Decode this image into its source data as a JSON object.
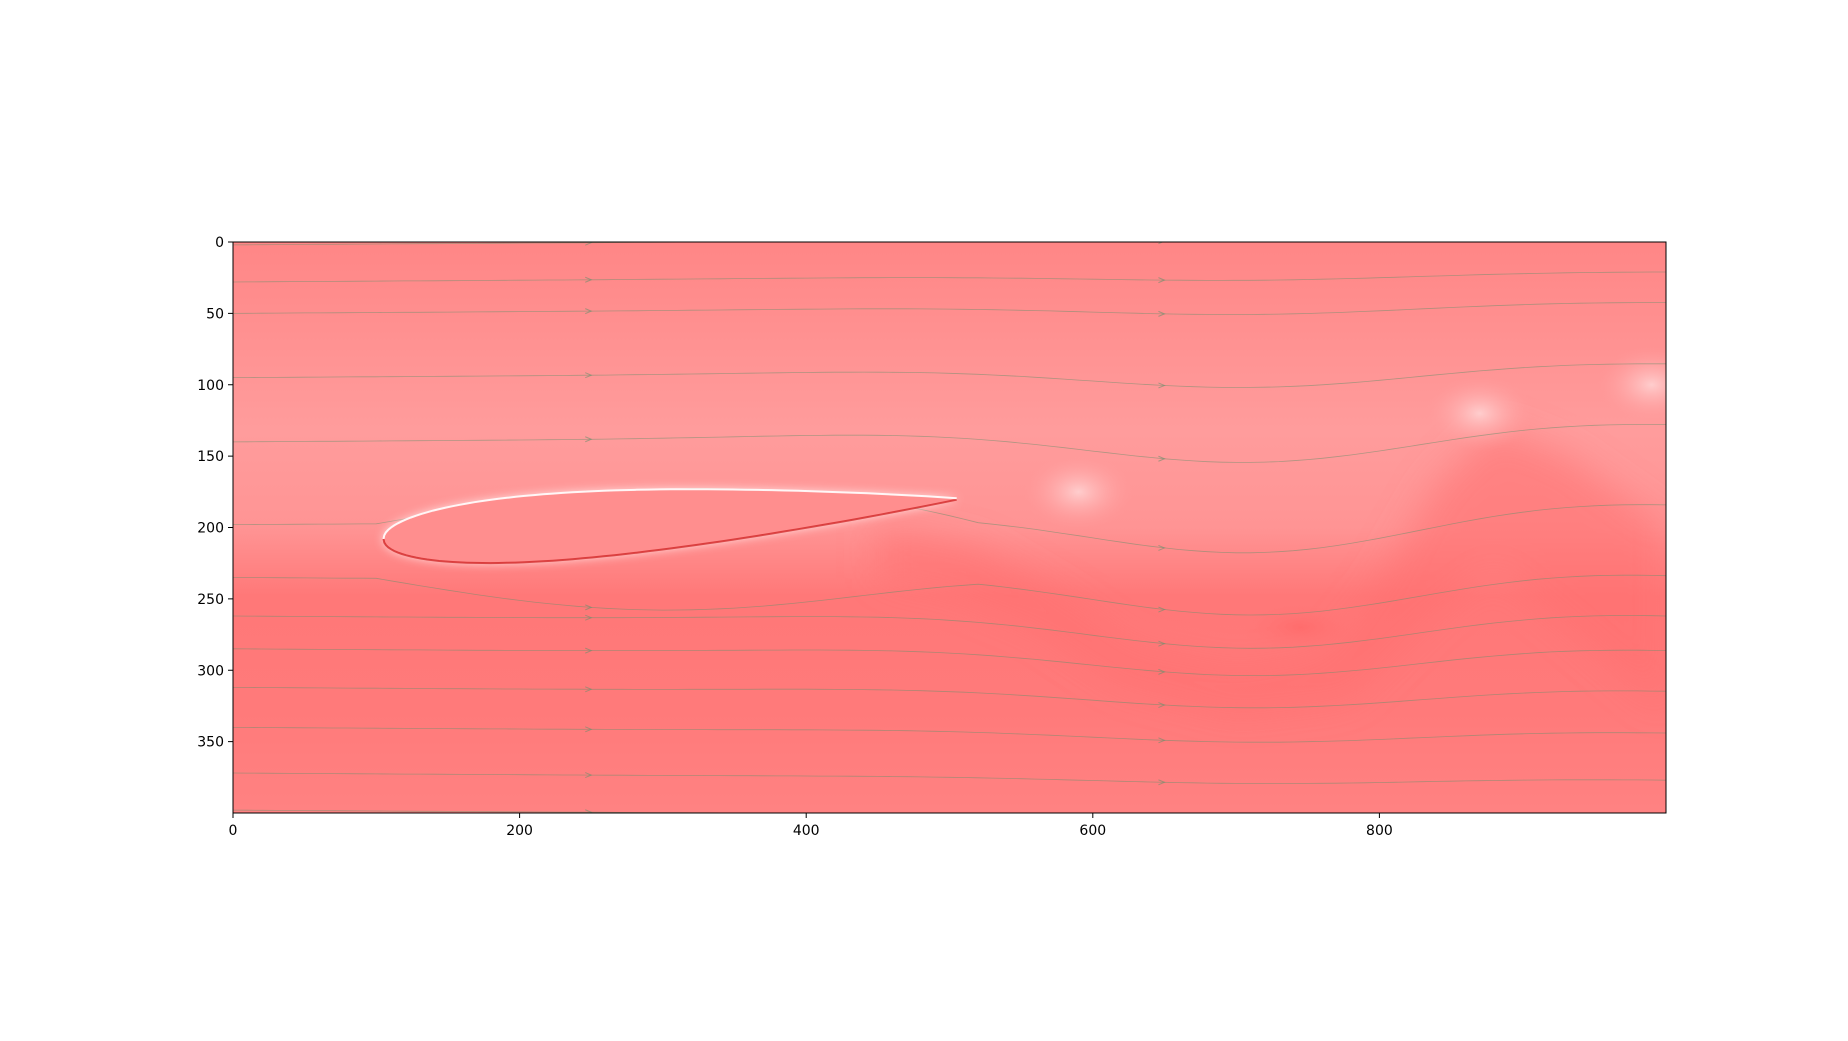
{
  "chart_data": {
    "type": "heatmap",
    "title": "",
    "xlabel": "",
    "ylabel": "",
    "xlim": [
      0,
      1000
    ],
    "ylim": [
      400,
      0
    ],
    "x_ticks": [
      0,
      200,
      400,
      600,
      800
    ],
    "y_ticks": [
      0,
      50,
      100,
      150,
      200,
      250,
      300,
      350
    ],
    "grid": false,
    "legend": "none",
    "colors": {
      "field_low": "#ff7272",
      "field_mid": "#ff9a9a",
      "field_high": "#ffffff",
      "streamline": "#6e8f6e",
      "airfoil_edge": "#cc1a1a"
    },
    "overlay": "streamlines",
    "airfoil": {
      "leading_edge": [
        105,
        208
      ],
      "trailing_edge": [
        505,
        180
      ],
      "max_thickness": 47
    },
    "wake_vortices": [
      {
        "x": 590,
        "y": 175,
        "sense": "high"
      },
      {
        "x": 745,
        "y": 270,
        "sense": "low"
      },
      {
        "x": 870,
        "y": 120,
        "sense": "high"
      },
      {
        "x": 990,
        "y": 100,
        "sense": "high"
      }
    ]
  }
}
